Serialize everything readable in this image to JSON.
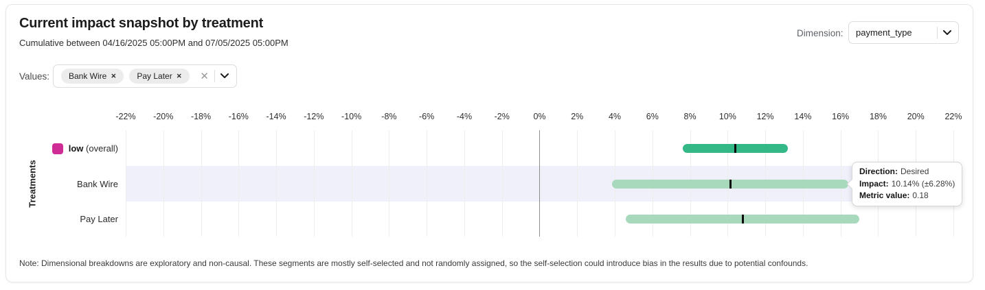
{
  "header": {
    "title": "Current impact snapshot by treatment",
    "subtitle": "Cumulative between 04/16/2025 05:00PM and 07/05/2025 05:00PM",
    "dimension_label": "Dimension:",
    "dimension_value": "payment_type"
  },
  "filters": {
    "values_label": "Values:",
    "chips": [
      {
        "label": "Bank Wire",
        "remove_icon": "x-icon"
      },
      {
        "label": "Pay Later",
        "remove_icon": "x-icon"
      }
    ],
    "clear_icon": "✕",
    "dropdown_icon": "chevron-down-icon"
  },
  "chart_data": {
    "type": "bar",
    "subtype": "horizontal-confidence-interval",
    "title": "",
    "xlabel": "",
    "ylabel": "Treatments",
    "x_unit": "%",
    "xlim": [
      -22,
      22
    ],
    "tick_step": 2,
    "grid": true,
    "zero_axis_line": true,
    "rows": [
      {
        "label": "low",
        "label_suffix": "(overall)",
        "legend_color": "#d02c96",
        "impact_pct": 10.4,
        "ci_half_width_pct": 2.8,
        "bar_color": "#35b887",
        "highlighted": false
      },
      {
        "label": "Bank Wire",
        "label_suffix": "",
        "legend_color": "",
        "impact_pct": 10.14,
        "ci_half_width_pct": 6.28,
        "bar_color": "#a9d9bd",
        "highlighted": true
      },
      {
        "label": "Pay Later",
        "label_suffix": "",
        "legend_color": "",
        "impact_pct": 10.8,
        "ci_half_width_pct": 6.2,
        "bar_color": "#a9d9bd",
        "highlighted": false
      }
    ]
  },
  "tooltip": {
    "direction_label": "Direction:",
    "direction_value": "Desired",
    "impact_label": "Impact:",
    "impact_value": "10.14% (±6.28%)",
    "metric_label": "Metric value:",
    "metric_value": "0.18"
  },
  "note": "Note: Dimensional breakdowns are exploratory and non-causal. These segments are mostly self-selected and not randomly assigned, so the self-selection could introduce bias in the results due to potential confounds.",
  "colors": {
    "accent_magenta": "#d02c96",
    "bar_green_dark": "#35b887",
    "bar_green_light": "#a9d9bd",
    "highlight_band": "#f0f0fb",
    "gridline": "#ededed",
    "zero_line": "#8c8c8c",
    "marker": "#0c0c0c"
  }
}
